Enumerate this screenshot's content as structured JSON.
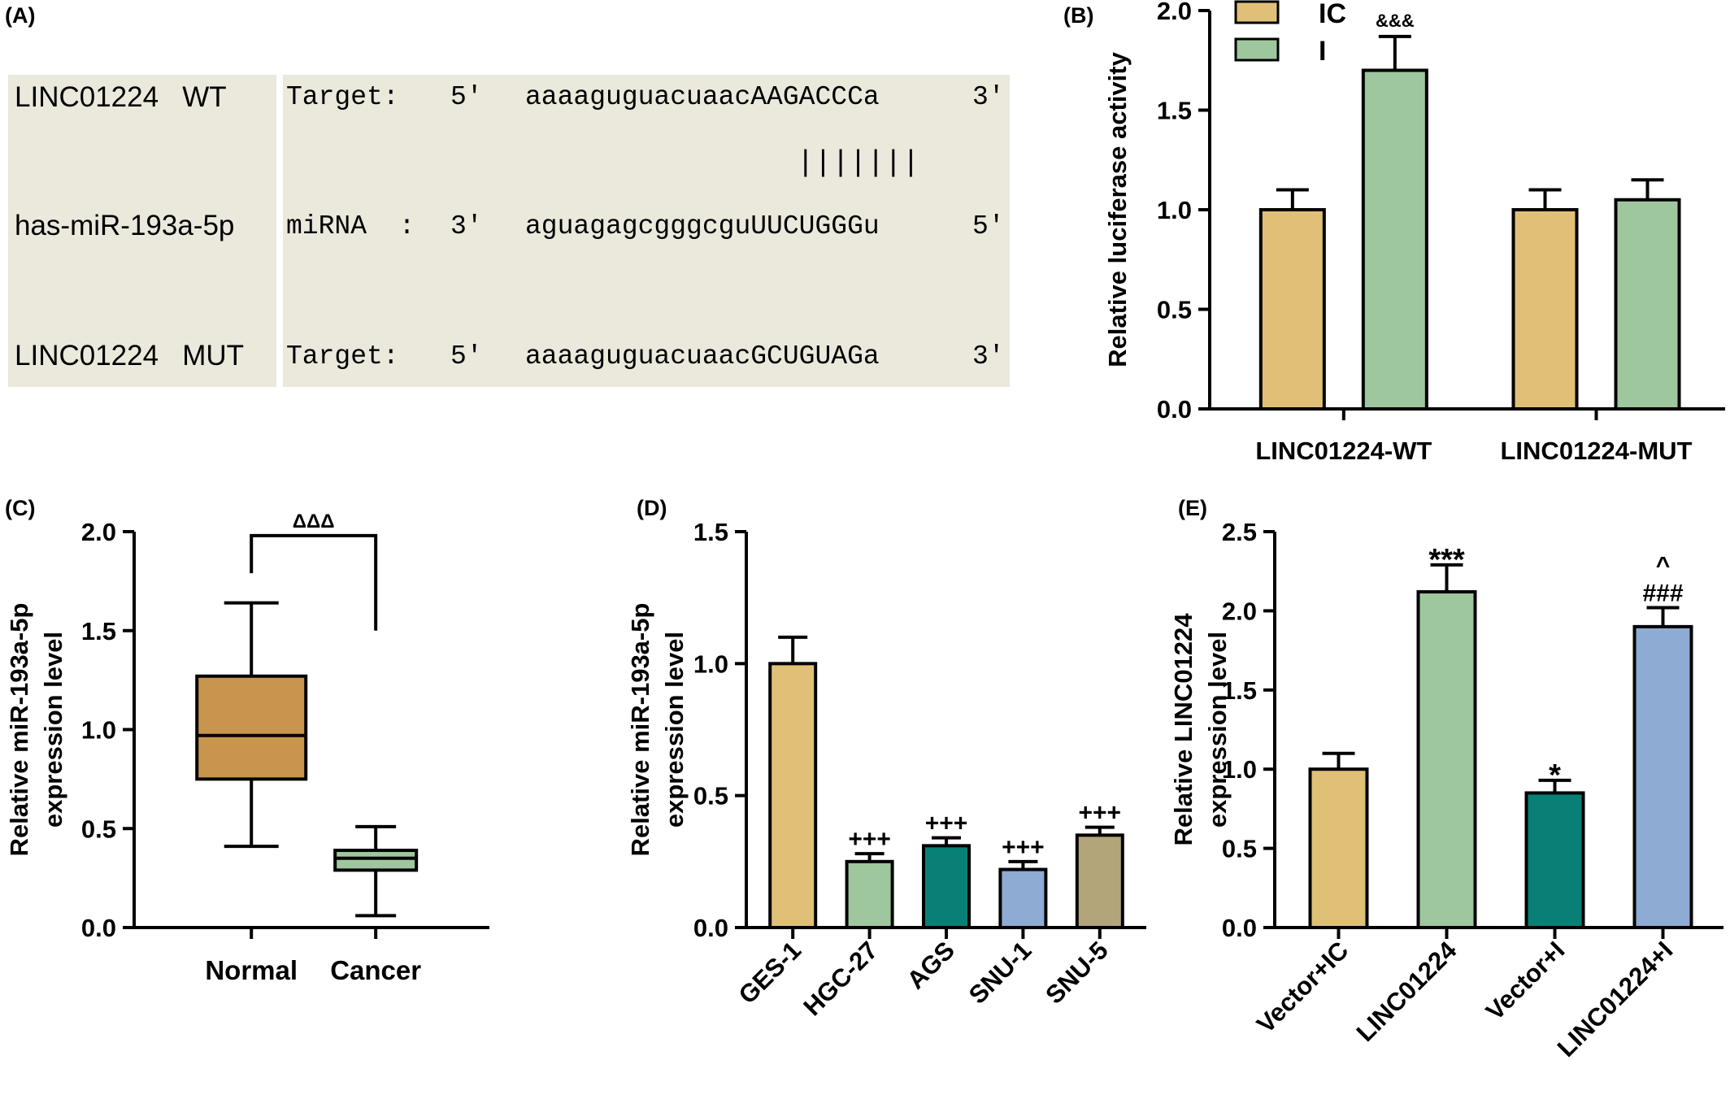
{
  "panel_labels": {
    "a": "(A)",
    "b": "(B)",
    "c": "(C)",
    "d": "(D)",
    "e": "(E)"
  },
  "sequences": [
    {
      "name": "LINC01224   WT",
      "kind": "Target:",
      "end5": "5'",
      "seq": "aaaaguguacuaacAAGACCCa",
      "end3": "3'"
    },
    {
      "name": "has-miR-193a-5p",
      "kind": "miRNA  :",
      "end5": "3'",
      "seq": "aguagagcgggcguUUCUGGGu",
      "end3": "5'"
    },
    {
      "name": "LINC01224   MUT",
      "kind": "Target:",
      "end5": "5'",
      "seq": "aaaaguguacuaacGCUGUAGa",
      "end3": "3'"
    }
  ],
  "pairing_marks": "|||||||",
  "colors": {
    "ic": "#e0c077",
    "i": "#9fc79d",
    "teal": "#088076",
    "blue": "#8eabd3",
    "khaki": "#b2a579",
    "box_brown": "#c8944e",
    "box_green": "#9fc79d",
    "seq_bg": "#ebe8dc"
  },
  "chart_data": [
    {
      "id": "B",
      "type": "bar",
      "categories": [
        "LINC01224-WT",
        "LINC01224-MUT"
      ],
      "series": [
        {
          "name": "IC",
          "values": [
            1.0,
            1.0
          ],
          "errors": [
            0.1,
            0.1
          ],
          "color": "#e0c077"
        },
        {
          "name": "I",
          "values": [
            1.7,
            1.05
          ],
          "errors": [
            0.17,
            0.1
          ],
          "color": "#9fc79d"
        }
      ],
      "annotations": [
        {
          "category": 0,
          "series": 1,
          "text": "&&&"
        }
      ],
      "ylabel": "Relative luciferase activity",
      "ylim": [
        0,
        2.0
      ],
      "yticks": [
        0.0,
        0.5,
        1.0,
        1.5,
        2.0
      ],
      "ytick_labels": [
        "0.0",
        "0.5",
        "1.0",
        "1.5",
        "2.0"
      ],
      "legend": "top-left"
    },
    {
      "id": "C",
      "type": "box",
      "categories": [
        "Normal",
        "Cancer"
      ],
      "boxes": [
        {
          "min": 0.41,
          "q1": 0.75,
          "median": 0.97,
          "q3": 1.27,
          "max": 1.64,
          "color": "#c8944e"
        },
        {
          "min": 0.06,
          "q1": 0.29,
          "median": 0.35,
          "q3": 0.39,
          "max": 0.51,
          "color": "#9fc79d"
        }
      ],
      "significance": {
        "text": "ΔΔΔ",
        "from": 0,
        "to": 1
      },
      "ylabel_lines": [
        "Relative miR-193a-5p",
        "expression level"
      ],
      "ylim": [
        0,
        2.0
      ],
      "yticks": [
        0.0,
        0.5,
        1.0,
        1.5,
        2.0
      ],
      "ytick_labels": [
        "0.0",
        "0.5",
        "1.0",
        "1.5",
        "2.0"
      ]
    },
    {
      "id": "D",
      "type": "bar",
      "categories": [
        "GES-1",
        "HGC-27",
        "AGS",
        "SNU-1",
        "SNU-5"
      ],
      "values": [
        1.0,
        0.25,
        0.31,
        0.22,
        0.35
      ],
      "errors": [
        0.1,
        0.03,
        0.03,
        0.03,
        0.03
      ],
      "colors": [
        "#e0c077",
        "#9fc79d",
        "#088076",
        "#8eabd3",
        "#b2a579"
      ],
      "annotations": [
        "",
        "+++",
        "+++",
        "+++",
        "+++"
      ],
      "ylabel_lines": [
        "Relative miR-193a-5p",
        "expression level"
      ],
      "ylim": [
        0,
        1.5
      ],
      "yticks": [
        0.0,
        0.5,
        1.0,
        1.5
      ],
      "ytick_labels": [
        "0.0",
        "0.5",
        "1.0",
        "1.5"
      ]
    },
    {
      "id": "E",
      "type": "bar",
      "categories": [
        "Vector+IC",
        "LINC01224",
        "Vector+I",
        "LINC01224+I"
      ],
      "values": [
        1.0,
        2.12,
        0.85,
        1.9
      ],
      "errors": [
        0.1,
        0.17,
        0.08,
        0.12
      ],
      "colors": [
        "#e0c077",
        "#9fc79d",
        "#088076",
        "#8eabd3"
      ],
      "annotations": [
        [],
        [
          "***"
        ],
        [
          "*"
        ],
        [
          "^",
          "###"
        ]
      ],
      "ylabel_lines": [
        "Relative LINC01224",
        "expression level"
      ],
      "ylim": [
        0,
        2.5
      ],
      "yticks": [
        0.0,
        0.5,
        1.0,
        1.5,
        2.0,
        2.5
      ],
      "ytick_labels": [
        "0.0",
        "0.5",
        "1.0",
        "1.5",
        "2.0",
        "2.5"
      ]
    }
  ]
}
